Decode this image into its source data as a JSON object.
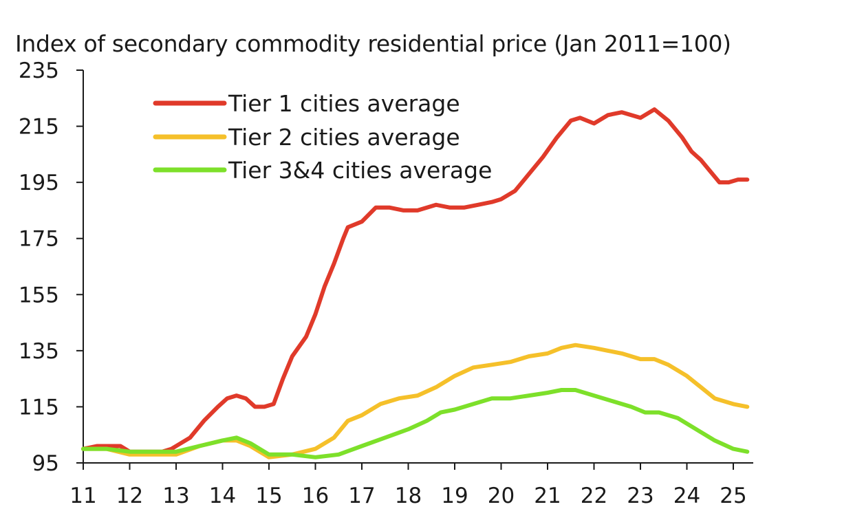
{
  "chart_data": {
    "type": "line",
    "title": "Index of secondary commodity residential price (Jan 2011=100)",
    "xlabel": "",
    "ylabel": "",
    "ylim": [
      95,
      235
    ],
    "yticks": [
      95,
      115,
      135,
      155,
      175,
      195,
      215,
      235
    ],
    "xlim": [
      11,
      25.4
    ],
    "xticks": [
      11,
      12,
      13,
      14,
      15,
      16,
      17,
      18,
      19,
      20,
      21,
      22,
      23,
      24,
      25
    ],
    "xtick_labels": [
      "11",
      "12",
      "13",
      "14",
      "15",
      "16",
      "17",
      "18",
      "19",
      "20",
      "21",
      "22",
      "23",
      "24",
      "25"
    ],
    "grid": false,
    "legend": "top-left",
    "series": [
      {
        "name": "Tier 1 cities average",
        "color": "#e03a2a",
        "x": [
          11.0,
          11.3,
          11.8,
          12.0,
          12.3,
          12.7,
          12.9,
          13.0,
          13.3,
          13.6,
          13.9,
          14.1,
          14.3,
          14.5,
          14.7,
          14.9,
          15.1,
          15.3,
          15.5,
          15.8,
          16.0,
          16.2,
          16.4,
          16.6,
          16.7,
          17.0,
          17.3,
          17.6,
          17.9,
          18.2,
          18.6,
          18.9,
          19.2,
          19.5,
          19.8,
          20.0,
          20.3,
          20.6,
          20.9,
          21.2,
          21.5,
          21.7,
          22.0,
          22.3,
          22.6,
          22.8,
          23.0,
          23.3,
          23.6,
          23.9,
          24.1,
          24.3,
          24.5,
          24.7,
          24.9,
          25.1,
          25.3
        ],
        "values": [
          100,
          101,
          101,
          99,
          99,
          99,
          100,
          101,
          104,
          110,
          115,
          118,
          119,
          118,
          115,
          115,
          116,
          125,
          133,
          140,
          148,
          158,
          166,
          175,
          179,
          181,
          186,
          186,
          185,
          185,
          187,
          186,
          186,
          187,
          188,
          189,
          192,
          198,
          204,
          211,
          217,
          218,
          216,
          219,
          220,
          219,
          218,
          221,
          217,
          211,
          206,
          203,
          199,
          195,
          195,
          196,
          196
        ]
      },
      {
        "name": "Tier 2 cities average",
        "color": "#f5c02a",
        "x": [
          11.0,
          11.5,
          12.0,
          12.5,
          13.0,
          13.5,
          14.0,
          14.3,
          14.6,
          15.0,
          15.5,
          16.0,
          16.4,
          16.7,
          17.0,
          17.4,
          17.8,
          18.2,
          18.6,
          19.0,
          19.4,
          19.8,
          20.2,
          20.6,
          21.0,
          21.3,
          21.6,
          22.0,
          22.3,
          22.6,
          23.0,
          23.3,
          23.6,
          24.0,
          24.3,
          24.6,
          25.0,
          25.3
        ],
        "values": [
          100,
          100,
          98,
          98,
          98,
          101,
          103,
          103,
          101,
          97,
          98,
          100,
          104,
          110,
          112,
          116,
          118,
          119,
          122,
          126,
          129,
          130,
          131,
          133,
          134,
          136,
          137,
          136,
          135,
          134,
          132,
          132,
          130,
          126,
          122,
          118,
          116,
          115
        ]
      },
      {
        "name": "Tier 3&4 cities average",
        "color": "#7de02a",
        "x": [
          11.0,
          11.5,
          12.0,
          12.5,
          13.0,
          13.5,
          14.0,
          14.3,
          14.6,
          15.0,
          15.5,
          16.0,
          16.5,
          17.0,
          17.5,
          18.0,
          18.4,
          18.7,
          19.0,
          19.4,
          19.8,
          20.2,
          20.6,
          21.0,
          21.3,
          21.6,
          22.0,
          22.4,
          22.8,
          23.1,
          23.4,
          23.8,
          24.2,
          24.6,
          25.0,
          25.3
        ],
        "values": [
          100,
          100,
          99,
          99,
          99,
          101,
          103,
          104,
          102,
          98,
          98,
          97,
          98,
          101,
          104,
          107,
          110,
          113,
          114,
          116,
          118,
          118,
          119,
          120,
          121,
          121,
          119,
          117,
          115,
          113,
          113,
          111,
          107,
          103,
          100,
          99
        ]
      }
    ]
  }
}
